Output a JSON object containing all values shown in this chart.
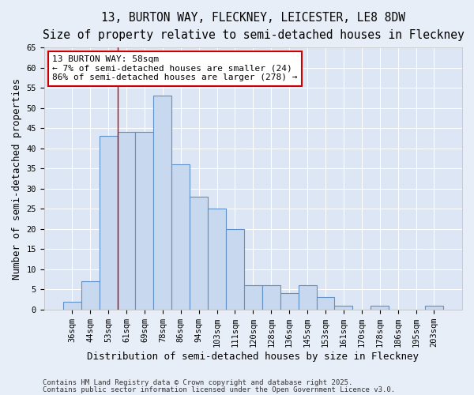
{
  "title1": "13, BURTON WAY, FLECKNEY, LEICESTER, LE8 8DW",
  "title2": "Size of property relative to semi-detached houses in Fleckney",
  "xlabel": "Distribution of semi-detached houses by size in Fleckney",
  "ylabel": "Number of semi-detached properties",
  "categories": [
    "36sqm",
    "44sqm",
    "53sqm",
    "61sqm",
    "69sqm",
    "78sqm",
    "86sqm",
    "94sqm",
    "103sqm",
    "111sqm",
    "120sqm",
    "128sqm",
    "136sqm",
    "145sqm",
    "153sqm",
    "161sqm",
    "170sqm",
    "178sqm",
    "186sqm",
    "195sqm",
    "203sqm"
  ],
  "values": [
    2,
    7,
    43,
    44,
    44,
    53,
    36,
    28,
    25,
    20,
    6,
    6,
    4,
    6,
    3,
    1,
    0,
    1,
    0,
    0,
    1
  ],
  "bar_color": "#c8d8ee",
  "bar_edge_color": "#6090c8",
  "background_color": "#e8eef8",
  "plot_bg_color": "#dce6f4",
  "grid_color": "#ffffff",
  "vline_x": 2.5,
  "annotation_line1": "13 BURTON WAY: 58sqm",
  "annotation_line2": "← 7% of semi-detached houses are smaller (24)",
  "annotation_line3": "86% of semi-detached houses are larger (278) →",
  "ylim": [
    0,
    65
  ],
  "yticks": [
    0,
    5,
    10,
    15,
    20,
    25,
    30,
    35,
    40,
    45,
    50,
    55,
    60,
    65
  ],
  "footer1": "Contains HM Land Registry data © Crown copyright and database right 2025.",
  "footer2": "Contains public sector information licensed under the Open Government Licence v3.0.",
  "title1_fontsize": 10.5,
  "title2_fontsize": 9.5,
  "annotation_fontsize": 8,
  "tick_fontsize": 7.5,
  "axis_label_fontsize": 9,
  "footer_fontsize": 6.5
}
